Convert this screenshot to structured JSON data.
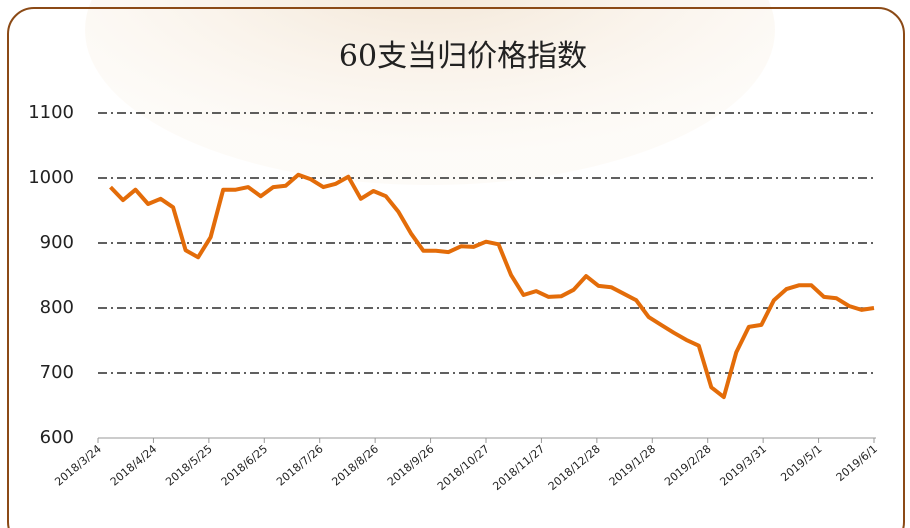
{
  "chart_data": {
    "type": "line",
    "title": "60支当归价格指数",
    "x": [
      "2018/3/31",
      "2018/4/7",
      "2018/4/14",
      "2018/4/21",
      "2018/4/28",
      "2018/5/5",
      "2018/5/12",
      "2018/5/19",
      "2018/5/26",
      "2018/6/2",
      "2018/6/9",
      "2018/6/16",
      "2018/6/23",
      "2018/6/30",
      "2018/7/7",
      "2018/7/14",
      "2018/7/21",
      "2018/7/28",
      "2018/8/4",
      "2018/8/11",
      "2018/8/18",
      "2018/8/25",
      "2018/9/1",
      "2018/9/8",
      "2018/9/15",
      "2018/9/22",
      "2018/9/29",
      "2018/10/6",
      "2018/10/13",
      "2018/10/20",
      "2018/10/27",
      "2018/11/3",
      "2018/11/10",
      "2018/11/17",
      "2018/11/24",
      "2018/12/1",
      "2018/12/8",
      "2018/12/15",
      "2018/12/22",
      "2018/12/29",
      "2019/1/5",
      "2019/1/12",
      "2019/1/19",
      "2019/1/26",
      "2019/2/2",
      "2019/2/9",
      "2019/2/16",
      "2019/2/23",
      "2019/3/2",
      "2019/3/9",
      "2019/3/16",
      "2019/3/23",
      "2019/3/30",
      "2019/4/6",
      "2019/4/13",
      "2019/4/20",
      "2019/4/27",
      "2019/5/4",
      "2019/5/11",
      "2019/5/18",
      "2019/5/25",
      "2019/6/1"
    ],
    "series": [
      {
        "color": "#e36c09",
        "values": [
          986,
          966,
          982,
          960,
          968,
          955,
          889,
          878,
          909,
          982,
          982,
          986,
          972,
          986,
          988,
          1005,
          998,
          986,
          991,
          1002,
          968,
          980,
          972,
          948,
          915,
          888,
          888,
          886,
          895,
          894,
          902,
          898,
          851,
          820,
          826,
          817,
          818,
          828,
          849,
          834,
          832,
          822,
          812,
          786,
          774,
          762,
          751,
          742,
          678,
          663,
          732,
          771,
          774,
          812,
          829,
          835,
          835,
          817,
          815,
          803,
          797,
          800
        ]
      }
    ],
    "xlim": [
      "2018/3/24",
      "2019/6/1"
    ],
    "xticks": [
      "2018/3/24",
      "2018/4/24",
      "2018/5/25",
      "2018/6/25",
      "2018/7/26",
      "2018/8/26",
      "2018/9/26",
      "2018/10/27",
      "2018/11/27",
      "2018/12/28",
      "2019/1/28",
      "2019/2/28",
      "2019/3/31",
      "2019/5/1",
      "2019/6/1"
    ],
    "ylim": [
      600,
      1100
    ],
    "yticks": [
      600,
      700,
      800,
      900,
      1000,
      1100
    ],
    "grid": true
  }
}
